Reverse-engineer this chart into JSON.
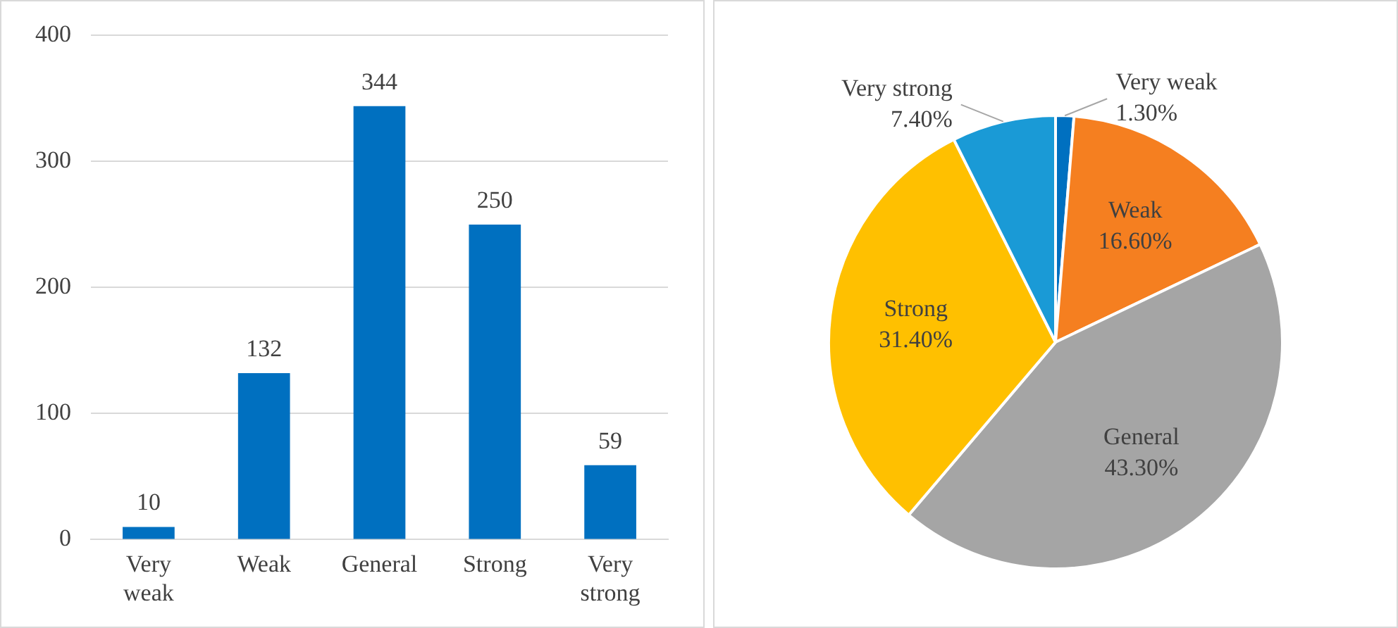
{
  "chart_data": [
    {
      "type": "bar",
      "categories": [
        "Very weak",
        "Weak",
        "General",
        "Strong",
        "Very strong"
      ],
      "values": [
        10,
        132,
        344,
        250,
        59
      ],
      "color": "#0070c0",
      "ylim": [
        0,
        400
      ],
      "yticks": [
        0,
        100,
        200,
        300,
        400
      ],
      "grid": "y",
      "data_labels": true
    },
    {
      "type": "pie",
      "categories": [
        "Very weak",
        "Weak",
        "General",
        "Strong",
        "Very strong"
      ],
      "values": [
        1.3,
        16.6,
        43.3,
        31.4,
        7.4
      ],
      "colors": [
        "#0070c0",
        "#f57f20",
        "#a5a5a5",
        "#ffc000",
        "#1a9ad6"
      ],
      "value_labels": [
        "1.30%",
        "16.60%",
        "43.30%",
        "31.40%",
        "7.40%"
      ]
    }
  ]
}
